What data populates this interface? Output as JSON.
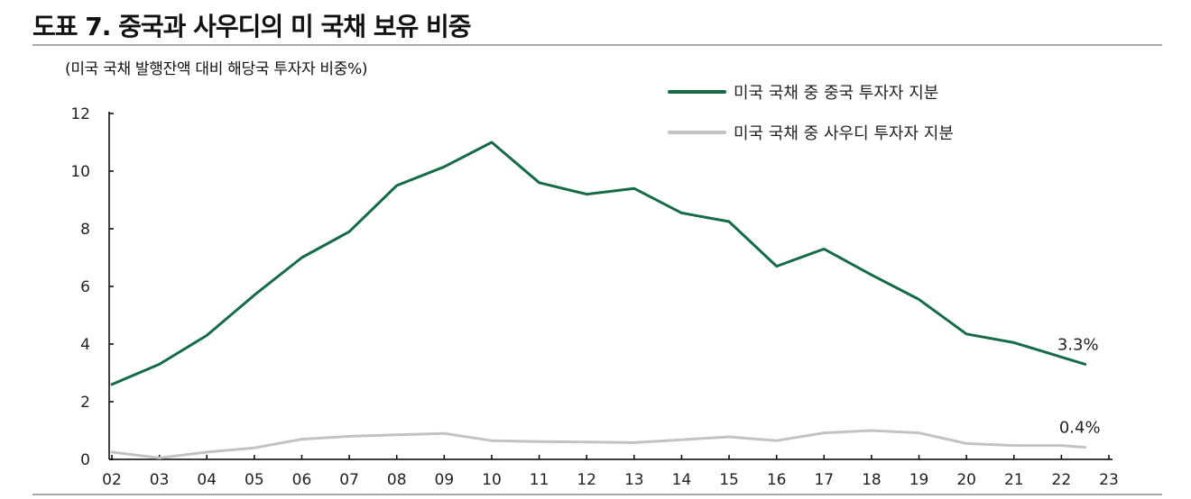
{
  "title": "도표 7. 중국과 사우디의 미 국채 보유 비중",
  "unit_label": "(미국 국채 발행잔액 대비 해당국 투자자 비중%)",
  "chart_data": {
    "type": "line",
    "title": "도표 7. 중국과 사우디의 미 국채 보유 비중",
    "ylabel": "(미국 국채 발행잔액 대비 해당국 투자자 비중%)",
    "xlabel": "",
    "x_ticks": [
      "02",
      "03",
      "04",
      "05",
      "06",
      "07",
      "08",
      "09",
      "10",
      "11",
      "12",
      "13",
      "14",
      "15",
      "16",
      "17",
      "18",
      "19",
      "20",
      "21",
      "22",
      "23"
    ],
    "y_ticks": [
      "0",
      "2",
      "4",
      "6",
      "8",
      "10",
      "12"
    ],
    "xlim": [
      2002,
      2023
    ],
    "ylim": [
      0,
      12
    ],
    "legend_position": "top-right",
    "grid": false,
    "series": [
      {
        "name": "미국 국채 중 중국 투자자 지분",
        "color": "#166b47",
        "x": [
          2002,
          2003,
          2004,
          2005,
          2006,
          2007,
          2008,
          2009,
          2010,
          2011,
          2012,
          2013,
          2014,
          2015,
          2016,
          2017,
          2018,
          2019,
          2020,
          2021,
          2022,
          2022.5
        ],
        "values": [
          2.6,
          3.3,
          4.3,
          5.7,
          7.0,
          7.9,
          9.5,
          10.15,
          11.0,
          9.6,
          9.2,
          9.4,
          8.55,
          8.25,
          6.7,
          7.3,
          6.4,
          5.55,
          4.35,
          4.05,
          3.55,
          3.3
        ],
        "end_label": "3.3%"
      },
      {
        "name": "미국 국채 중 사우디 투자자 지분",
        "color": "#c3c3c3",
        "x": [
          2002,
          2003,
          2004,
          2005,
          2006,
          2007,
          2008,
          2009,
          2010,
          2011,
          2012,
          2013,
          2014,
          2015,
          2016,
          2017,
          2018,
          2019,
          2020,
          2021,
          2022,
          2022.5
        ],
        "values": [
          0.25,
          0.05,
          0.25,
          0.4,
          0.7,
          0.8,
          0.85,
          0.9,
          0.65,
          0.62,
          0.6,
          0.58,
          0.68,
          0.78,
          0.65,
          0.92,
          1.0,
          0.92,
          0.55,
          0.48,
          0.48,
          0.42
        ],
        "end_label": "0.4%"
      }
    ]
  }
}
